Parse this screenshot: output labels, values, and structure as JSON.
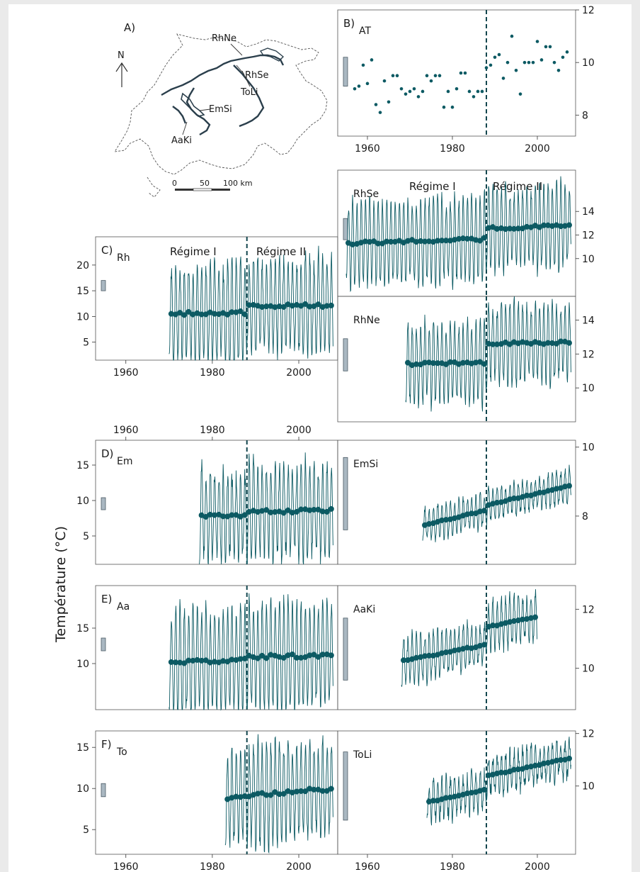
{
  "figure": {
    "ylabel": "Température (°C)",
    "regime_labels": [
      "Régime I",
      "Régime II"
    ],
    "colors": {
      "series": "#0c5a63",
      "regime_line": "#12464e",
      "bar_fill": "#aab8c2",
      "bar_stroke": "#4a5a64",
      "map": "#3a4c58"
    }
  },
  "map": {
    "panel_label": "A)",
    "north": "N",
    "scale_labels": [
      "0",
      "50",
      "100 km"
    ],
    "site_labels": [
      "RhNe",
      "RhSe",
      "ToLi",
      "EmSi",
      "AaKi"
    ]
  },
  "chart_data": [
    {
      "id": "B",
      "panel_label": "B)",
      "station": "AT",
      "type": "scatter",
      "x": [
        1957,
        1958,
        1959,
        1960,
        1961,
        1962,
        1963,
        1964,
        1965,
        1966,
        1967,
        1968,
        1969,
        1970,
        1971,
        1972,
        1973,
        1974,
        1975,
        1976,
        1977,
        1978,
        1979,
        1980,
        1981,
        1982,
        1983,
        1984,
        1985,
        1986,
        1987,
        1988,
        1989,
        1990,
        1991,
        1992,
        1993,
        1994,
        1995,
        1996,
        1997,
        1998,
        1999,
        2000,
        2001,
        2002,
        2003,
        2004,
        2005,
        2006,
        2007
      ],
      "y": [
        9.0,
        9.1,
        9.9,
        9.2,
        10.1,
        8.4,
        8.1,
        9.3,
        8.5,
        9.5,
        9.5,
        9.0,
        8.8,
        8.9,
        9.0,
        8.7,
        8.9,
        9.5,
        9.3,
        9.5,
        9.5,
        8.3,
        8.9,
        8.3,
        9.0,
        9.6,
        9.6,
        8.9,
        8.7,
        8.9,
        8.9,
        9.8,
        9.9,
        10.2,
        10.3,
        9.4,
        10.0,
        11.0,
        9.7,
        8.8,
        10.0,
        10.0,
        10.0,
        10.8,
        10.1,
        10.6,
        10.6,
        10.0,
        9.7,
        10.2,
        10.4
      ],
      "xticks": [
        1960,
        1980,
        2000
      ],
      "yticks": [
        8,
        10,
        12
      ],
      "xlim": [
        1953,
        2009
      ],
      "ylim": [
        7.2,
        12.0
      ],
      "bar_range": [
        9.1,
        10.2
      ],
      "regime_break": 1988,
      "yaxis": "right"
    },
    {
      "id": "RhSe",
      "station": "RhSe",
      "type": "line",
      "start": 1955,
      "end": 2008,
      "amp": 3.3,
      "noise": 0.5,
      "base": 11.3,
      "drift": 0.6,
      "jump": 0.9,
      "mean_marker_size": 5,
      "yticks": [
        10,
        12,
        14
      ],
      "xlim": [
        1953,
        2009
      ],
      "ylim": [
        6.8,
        17.5
      ],
      "bar_range": [
        11.6,
        13.4
      ],
      "regime_break": 1988,
      "yaxis": "right"
    },
    {
      "id": "RhNe",
      "station": "RhNe",
      "type": "line",
      "start": 1969,
      "end": 2008,
      "amp": 2.2,
      "noise": 0.35,
      "base": 11.4,
      "drift": 0.2,
      "jump": 1.1,
      "mean_marker_size": 5,
      "yticks": [
        10,
        12,
        14
      ],
      "xlim": [
        1953,
        2009
      ],
      "ylim": [
        8.0,
        15.4
      ],
      "bar_range": [
        11.0,
        12.9
      ],
      "regime_break": 1988,
      "yaxis": "right"
    },
    {
      "id": "C",
      "panel_label": "C)",
      "station": "Rh",
      "type": "line",
      "start": 1970,
      "end": 2008,
      "amp": 8.8,
      "noise": 1.8,
      "base": 10.6,
      "drift": 0.3,
      "jump": 1.3,
      "mean_marker_size": 5,
      "xticks": [
        1960,
        1980,
        2000
      ],
      "yticks": [
        5,
        10,
        15,
        20
      ],
      "xlim": [
        1953,
        2009
      ],
      "ylim": [
        1.5,
        25.5
      ],
      "bar_range": [
        15.0,
        17.0
      ],
      "regime_break": 1988,
      "yaxis": "left"
    },
    {
      "id": "D",
      "panel_label": "D)",
      "station": "Em",
      "type": "line",
      "start": 1977,
      "end": 2008,
      "amp": 6.2,
      "noise": 1.3,
      "base": 7.8,
      "drift": 0.3,
      "jump": 0.5,
      "mean_marker_size": 5,
      "xticks": [
        1960,
        1980,
        2000
      ],
      "yticks": [
        5,
        10,
        15
      ],
      "xlim": [
        1953,
        2009
      ],
      "ylim": [
        1.0,
        18.5
      ],
      "bar_range": [
        8.7,
        10.4
      ],
      "regime_break": 1988,
      "yaxis": "left"
    },
    {
      "id": "EmSi",
      "station": "EmSi",
      "type": "line",
      "start": 1973,
      "end": 2008,
      "amp": 0.45,
      "noise": 0.12,
      "base": 7.75,
      "drift": 1.0,
      "jump": 0.15,
      "mean_marker_size": 5,
      "yticks": [
        8,
        10
      ],
      "xlim": [
        1953,
        2009
      ],
      "ylim": [
        6.6,
        10.2
      ],
      "bar_range": [
        7.6,
        9.7
      ],
      "regime_break": 1988,
      "yaxis": "right"
    },
    {
      "id": "E",
      "panel_label": "E)",
      "station": "Aa",
      "type": "line",
      "start": 1970,
      "end": 2008,
      "amp": 7.2,
      "noise": 1.0,
      "base": 10.2,
      "drift": 0.6,
      "jump": 0.4,
      "mean_marker_size": 5,
      "yticks": [
        10,
        15
      ],
      "xlim": [
        1953,
        2009
      ],
      "ylim": [
        3.5,
        21.0
      ],
      "bar_range": [
        11.8,
        13.6
      ],
      "regime_break": 1988,
      "yaxis": "left"
    },
    {
      "id": "AaKi",
      "station": "AaKi",
      "type": "line",
      "start": 1968,
      "end": 2000,
      "amp": 0.75,
      "noise": 0.22,
      "base": 10.25,
      "drift": 0.9,
      "jump": 0.6,
      "mean_marker_size": 5,
      "yticks": [
        10,
        12
      ],
      "xlim": [
        1953,
        2009
      ],
      "ylim": [
        8.6,
        12.8
      ],
      "bar_range": [
        9.6,
        11.7
      ],
      "regime_break": 1988,
      "yaxis": "right"
    },
    {
      "id": "F",
      "panel_label": "F)",
      "station": "To",
      "type": "line",
      "start": 1983,
      "end": 2008,
      "amp": 5.6,
      "noise": 1.1,
      "base": 8.8,
      "drift": 1.0,
      "jump": 0.2,
      "mean_marker_size": 5,
      "xticks": [
        1960,
        1980,
        2000
      ],
      "yticks": [
        5,
        10,
        15
      ],
      "xlim": [
        1953,
        2009
      ],
      "ylim": [
        2.0,
        17.0
      ],
      "bar_range": [
        9.0,
        10.6
      ],
      "regime_break": 1988,
      "yaxis": "left"
    },
    {
      "id": "ToLi",
      "station": "ToLi",
      "type": "line",
      "start": 1974,
      "end": 2008,
      "amp": 0.65,
      "noise": 0.3,
      "base": 9.4,
      "drift": 1.2,
      "jump": 0.5,
      "mean_marker_size": 5,
      "xticks": [
        1960,
        1980,
        2000
      ],
      "yticks": [
        10,
        12
      ],
      "xlim": [
        1953,
        2009
      ],
      "ylim": [
        7.4,
        12.1
      ],
      "bar_range": [
        8.7,
        11.3
      ],
      "regime_break": 1988,
      "yaxis": "right"
    }
  ]
}
